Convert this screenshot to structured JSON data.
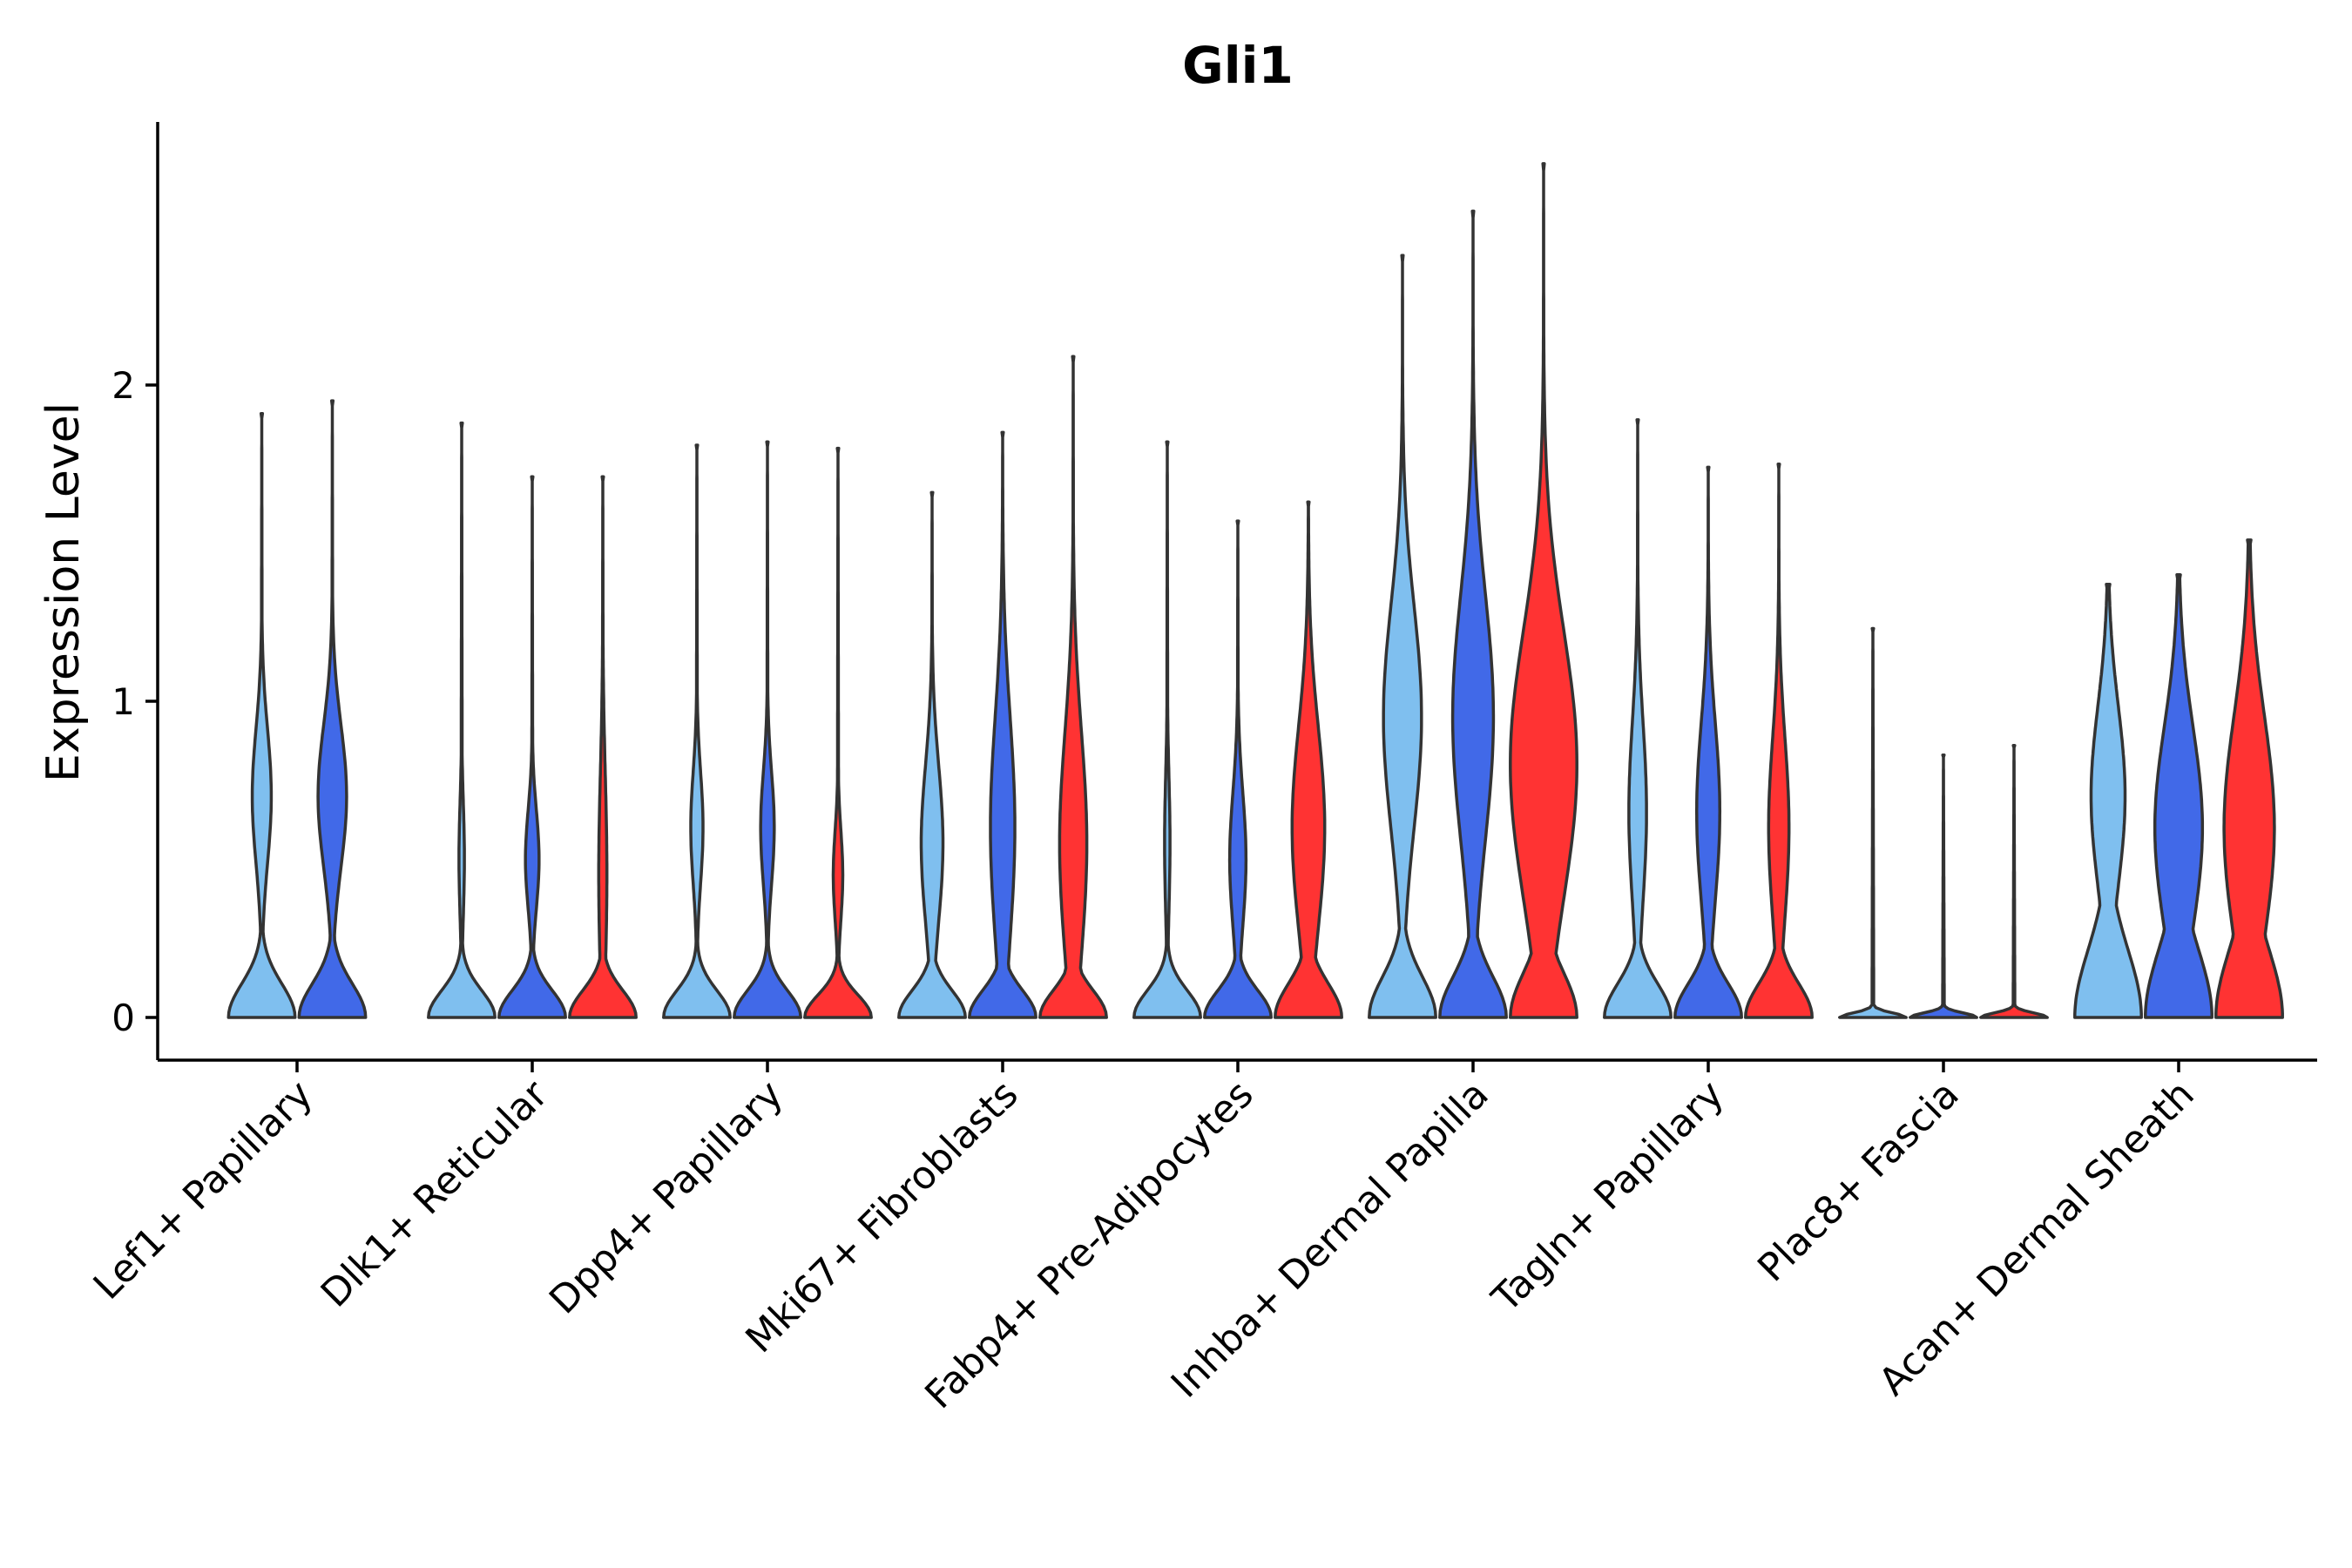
{
  "chart_data": {
    "type": "violin",
    "title": "Gli1",
    "xlabel": "",
    "ylabel": "Expression Level",
    "ylim": [
      -0.14,
      2.85
    ],
    "yticks": [
      0,
      1,
      2
    ],
    "legend": "none",
    "grid": false,
    "colors": [
      "#7FBFEF",
      "#4169E8",
      "#FF3333"
    ],
    "groups": [
      {
        "category": "Lef1+ Papillary",
        "violins": [
          {
            "color_index": 0,
            "max": 1.91,
            "bulk": 0.15,
            "base_width": 0.98,
            "mode": 0.7,
            "mode_width": 0.28,
            "mode_spread": 0.3,
            "flat_top": false
          },
          {
            "color_index": 1,
            "max": 1.95,
            "bulk": 0.15,
            "base_width": 0.98,
            "mode": 0.7,
            "mode_width": 0.42,
            "mode_spread": 0.32,
            "flat_top": false
          }
        ]
      },
      {
        "category": "Dlk1+ Reticular",
        "violins": [
          {
            "color_index": 0,
            "max": 1.88,
            "bulk": 0.12,
            "base_width": 0.98,
            "mode": 0.5,
            "mode_width": 0.08,
            "mode_spread": 0.25,
            "flat_top": false
          },
          {
            "color_index": 1,
            "max": 1.71,
            "bulk": 0.12,
            "base_width": 0.98,
            "mode": 0.5,
            "mode_width": 0.2,
            "mode_spread": 0.22,
            "flat_top": false
          },
          {
            "color_index": 2,
            "max": 1.71,
            "bulk": 0.12,
            "base_width": 0.98,
            "mode": 0.45,
            "mode_width": 0.12,
            "mode_spread": 0.45,
            "flat_top": false
          }
        ]
      },
      {
        "category": "Dpp4+ Papillary",
        "violins": [
          {
            "color_index": 0,
            "max": 1.81,
            "bulk": 0.12,
            "base_width": 0.98,
            "mode": 0.6,
            "mode_width": 0.18,
            "mode_spread": 0.25,
            "flat_top": false
          },
          {
            "color_index": 1,
            "max": 1.82,
            "bulk": 0.12,
            "base_width": 0.98,
            "mode": 0.6,
            "mode_width": 0.2,
            "mode_spread": 0.25,
            "flat_top": false
          },
          {
            "color_index": 2,
            "max": 1.8,
            "bulk": 0.1,
            "base_width": 0.98,
            "mode": 0.45,
            "mode_width": 0.14,
            "mode_spread": 0.2,
            "flat_top": false
          }
        ]
      },
      {
        "category": "Mki67+ Fibroblasts",
        "violins": [
          {
            "color_index": 0,
            "max": 1.66,
            "bulk": 0.12,
            "base_width": 0.98,
            "mode": 0.55,
            "mode_width": 0.32,
            "mode_spread": 0.35,
            "flat_top": false
          },
          {
            "color_index": 1,
            "max": 1.85,
            "bulk": 0.12,
            "base_width": 0.98,
            "mode": 0.6,
            "mode_width": 0.36,
            "mode_spread": 0.5,
            "flat_top": false
          },
          {
            "color_index": 2,
            "max": 2.09,
            "bulk": 0.12,
            "base_width": 0.98,
            "mode": 0.55,
            "mode_width": 0.4,
            "mode_spread": 0.5,
            "flat_top": false
          }
        ]
      },
      {
        "category": "Fabp4+ Pre-Adipocytes",
        "violins": [
          {
            "color_index": 0,
            "max": 1.82,
            "bulk": 0.12,
            "base_width": 0.98,
            "mode": 0.55,
            "mode_width": 0.08,
            "mode_spread": 0.3,
            "flat_top": false
          },
          {
            "color_index": 1,
            "max": 1.57,
            "bulk": 0.12,
            "base_width": 0.98,
            "mode": 0.5,
            "mode_width": 0.24,
            "mode_spread": 0.3,
            "flat_top": false
          },
          {
            "color_index": 2,
            "max": 1.63,
            "bulk": 0.15,
            "base_width": 0.98,
            "mode": 0.6,
            "mode_width": 0.48,
            "mode_spread": 0.45,
            "flat_top": false
          }
        ]
      },
      {
        "category": "Inhba+ Dermal Papilla",
        "violins": [
          {
            "color_index": 0,
            "max": 2.41,
            "bulk": 0.18,
            "base_width": 0.98,
            "mode": 0.95,
            "mode_width": 0.56,
            "mode_spread": 0.5,
            "flat_top": false
          },
          {
            "color_index": 1,
            "max": 2.55,
            "bulk": 0.18,
            "base_width": 0.98,
            "mode": 0.95,
            "mode_width": 0.6,
            "mode_spread": 0.55,
            "flat_top": false
          },
          {
            "color_index": 2,
            "max": 2.7,
            "bulk": 0.2,
            "base_width": 0.98,
            "mode": 0.8,
            "mode_width": 0.98,
            "mode_spread": 0.6,
            "flat_top": false
          }
        ]
      },
      {
        "category": "Tagln+ Papillary",
        "violins": [
          {
            "color_index": 0,
            "max": 1.89,
            "bulk": 0.15,
            "base_width": 0.98,
            "mode": 0.65,
            "mode_width": 0.26,
            "mode_spread": 0.4,
            "flat_top": false
          },
          {
            "color_index": 1,
            "max": 1.74,
            "bulk": 0.15,
            "base_width": 0.98,
            "mode": 0.65,
            "mode_width": 0.34,
            "mode_spread": 0.4,
            "flat_top": false
          },
          {
            "color_index": 2,
            "max": 1.75,
            "bulk": 0.15,
            "base_width": 0.98,
            "mode": 0.6,
            "mode_width": 0.3,
            "mode_spread": 0.4,
            "flat_top": false
          }
        ]
      },
      {
        "category": "Plac8+ Fascia",
        "violins": [
          {
            "color_index": 0,
            "max": 1.23,
            "bulk": 0.02,
            "base_width": 0.98,
            "mode": 0.5,
            "mode_width": 0.0,
            "mode_spread": 0.2,
            "flat_top": false
          },
          {
            "color_index": 1,
            "max": 0.83,
            "bulk": 0.02,
            "base_width": 0.98,
            "mode": 0.45,
            "mode_width": 0.0,
            "mode_spread": 0.2,
            "flat_top": false
          },
          {
            "color_index": 2,
            "max": 0.86,
            "bulk": 0.02,
            "base_width": 0.98,
            "mode": 0.45,
            "mode_width": 0.0,
            "mode_spread": 0.2,
            "flat_top": false
          }
        ]
      },
      {
        "category": "Acan+ Dermal Sheath",
        "violins": [
          {
            "color_index": 0,
            "max": 1.37,
            "bulk": 0.3,
            "base_width": 0.98,
            "mode": 0.7,
            "mode_width": 0.5,
            "mode_spread": 0.4,
            "flat_top": true
          },
          {
            "color_index": 1,
            "max": 1.4,
            "bulk": 0.3,
            "base_width": 0.98,
            "mode": 0.6,
            "mode_width": 0.7,
            "mode_spread": 0.45,
            "flat_top": true
          },
          {
            "color_index": 2,
            "max": 1.51,
            "bulk": 0.3,
            "base_width": 0.98,
            "mode": 0.6,
            "mode_width": 0.74,
            "mode_spread": 0.5,
            "flat_top": true
          }
        ]
      }
    ]
  }
}
